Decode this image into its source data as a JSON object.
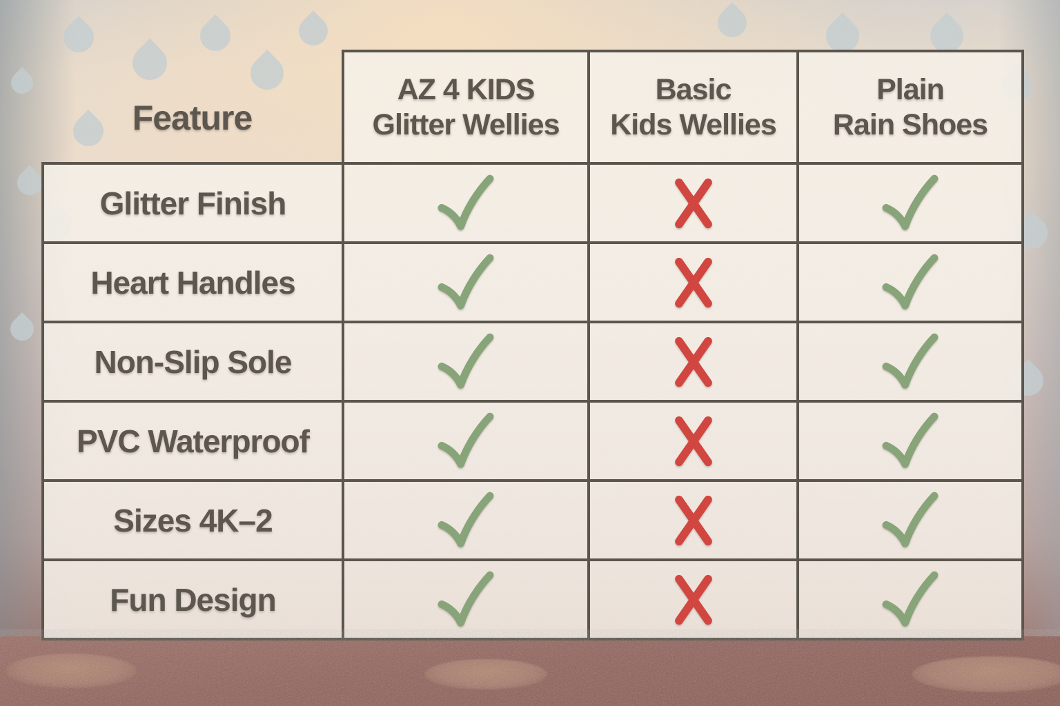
{
  "chart_data": {
    "type": "table",
    "feature_column_header": "Feature",
    "product_columns": [
      {
        "label": "AZ 4 KIDS Glitter Wellies",
        "lines": [
          "AZ 4 KIDS",
          "Glitter Wellies"
        ]
      },
      {
        "label": "Basic Kids Wellies",
        "lines": [
          "Basic",
          "Kids Wellies"
        ]
      },
      {
        "label": "Plain Rain Shoes",
        "lines": [
          "Plain",
          "Rain Shoes"
        ]
      }
    ],
    "rows": [
      {
        "feature": "Glitter Finish",
        "values": [
          true,
          false,
          true
        ]
      },
      {
        "feature": "Heart Handles",
        "values": [
          true,
          false,
          true
        ]
      },
      {
        "feature": "Non-Slip Sole",
        "values": [
          true,
          false,
          true
        ]
      },
      {
        "feature": "PVC Waterproof",
        "values": [
          true,
          false,
          true
        ]
      },
      {
        "feature": "Sizes 4K–2",
        "values": [
          true,
          false,
          true
        ]
      },
      {
        "feature": "Fun Design",
        "values": [
          true,
          false,
          true
        ]
      }
    ],
    "true_symbol": "check",
    "false_symbol": "cross"
  },
  "colors": {
    "check_green": "#86a377",
    "cross_red": "#d2423c",
    "table_border": "#57524a",
    "cell_background": "#f5f0e8",
    "text": "#59534b",
    "raindrop": "#c4ced1",
    "ground_brown": "#8e5f57",
    "puddle_tan": "#a87c6d"
  }
}
